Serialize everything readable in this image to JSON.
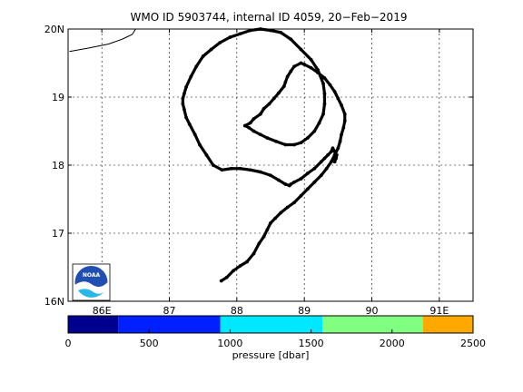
{
  "chart_data": [
    {
      "type": "line",
      "title": "WMO ID 5903744, internal ID 4059, 20−Feb−2019",
      "xlabel": "",
      "ylabel": "",
      "xlim": [
        85.5,
        91.5
      ],
      "ylim": [
        16,
        20
      ],
      "grid": true,
      "x_ticks": [
        86,
        87,
        88,
        89,
        90,
        91
      ],
      "x_tick_labels": [
        "86E",
        "87",
        "88",
        "89",
        "90",
        "91E"
      ],
      "y_ticks": [
        16,
        17,
        18,
        19,
        20
      ],
      "y_tick_labels": [
        "16N",
        "17",
        "18",
        "19",
        "20N"
      ],
      "coastline": {
        "x": [
          85.52,
          85.8,
          86.1,
          86.3,
          86.45,
          86.5
        ],
        "y": [
          19.67,
          19.72,
          19.78,
          19.85,
          19.92,
          20.0
        ]
      },
      "series": [
        {
          "color": "#000000",
          "x": [
            87.77,
            87.85,
            87.95,
            88.05,
            88.15,
            88.25,
            88.33,
            88.4,
            88.45,
            88.5,
            88.57,
            88.65,
            88.75,
            88.85,
            88.95,
            89.05,
            89.15,
            89.25,
            89.33,
            89.4,
            89.45,
            89.5,
            89.53,
            89.55,
            89.58,
            89.6,
            89.6,
            89.55,
            89.5,
            89.45,
            89.38,
            89.3,
            89.2,
            89.1,
            89.0,
            88.95,
            88.85,
            88.8,
            88.75,
            88.72,
            88.7,
            88.62,
            88.55,
            88.48,
            88.4,
            88.35,
            88.25,
            88.2,
            88.12,
            88.18,
            88.25,
            88.35,
            88.45,
            88.58,
            88.72,
            88.85,
            88.95,
            89.05,
            89.15,
            89.22,
            89.28,
            89.3,
            89.3,
            89.28,
            89.2,
            89.1,
            88.95,
            88.8,
            88.65,
            88.5,
            88.35,
            88.2,
            88.05,
            87.9,
            87.75,
            87.62,
            87.5,
            87.4,
            87.32,
            87.25,
            87.22,
            87.2,
            87.2,
            87.22,
            87.25,
            87.3,
            87.38,
            87.45,
            87.55,
            87.65,
            87.78,
            87.92,
            88.05,
            88.2,
            88.35,
            88.5,
            88.62,
            88.72,
            88.78,
            88.8,
            88.85,
            88.95,
            89.05,
            89.15,
            89.25,
            89.3,
            89.35,
            89.4,
            89.42,
            89.45,
            89.48,
            89.47,
            89.45
          ],
          "y": [
            16.3,
            16.35,
            16.45,
            16.52,
            16.58,
            16.7,
            16.85,
            16.95,
            17.05,
            17.15,
            17.22,
            17.3,
            17.38,
            17.45,
            17.55,
            17.65,
            17.75,
            17.85,
            17.95,
            18.05,
            18.15,
            18.25,
            18.35,
            18.45,
            18.55,
            18.65,
            18.75,
            18.88,
            18.98,
            19.08,
            19.18,
            19.28,
            19.36,
            19.43,
            19.48,
            19.5,
            19.45,
            19.38,
            19.3,
            19.22,
            19.16,
            19.06,
            18.98,
            18.9,
            18.83,
            18.75,
            18.68,
            18.62,
            18.58,
            18.55,
            18.5,
            18.45,
            18.4,
            18.35,
            18.3,
            18.3,
            18.33,
            18.4,
            18.5,
            18.62,
            18.75,
            18.9,
            19.05,
            19.2,
            19.4,
            19.55,
            19.7,
            19.85,
            19.95,
            19.98,
            20.0,
            19.98,
            19.93,
            19.88,
            19.8,
            19.7,
            19.6,
            19.45,
            19.3,
            19.15,
            19.05,
            18.98,
            18.9,
            18.82,
            18.7,
            18.6,
            18.45,
            18.3,
            18.15,
            18.0,
            17.93,
            17.95,
            17.95,
            17.93,
            17.9,
            17.85,
            17.78,
            17.72,
            17.7,
            17.72,
            17.75,
            17.8,
            17.88,
            17.95,
            18.05,
            18.1,
            18.15,
            18.2,
            18.25,
            18.2,
            18.15,
            18.1,
            18.05
          ]
        }
      ]
    },
    {
      "type": "colorbar",
      "label": "pressure [dbar]",
      "xlim": [
        0,
        2500
      ],
      "ticks": [
        0,
        500,
        1000,
        1500,
        2000,
        2500
      ],
      "tick_labels": [
        "0",
        "500",
        "1000",
        "1500",
        "2000",
        "2500"
      ],
      "segments": [
        {
          "from": 0,
          "to": 310,
          "color": "#00008f"
        },
        {
          "from": 310,
          "to": 940,
          "color": "#0020ff"
        },
        {
          "from": 940,
          "to": 1570,
          "color": "#00e8ff"
        },
        {
          "from": 1570,
          "to": 2190,
          "color": "#80ff80"
        },
        {
          "from": 2190,
          "to": 2500,
          "color": "#ffa800"
        }
      ]
    }
  ],
  "logo": {
    "name": "NOAA logo",
    "text": "NOAA"
  }
}
